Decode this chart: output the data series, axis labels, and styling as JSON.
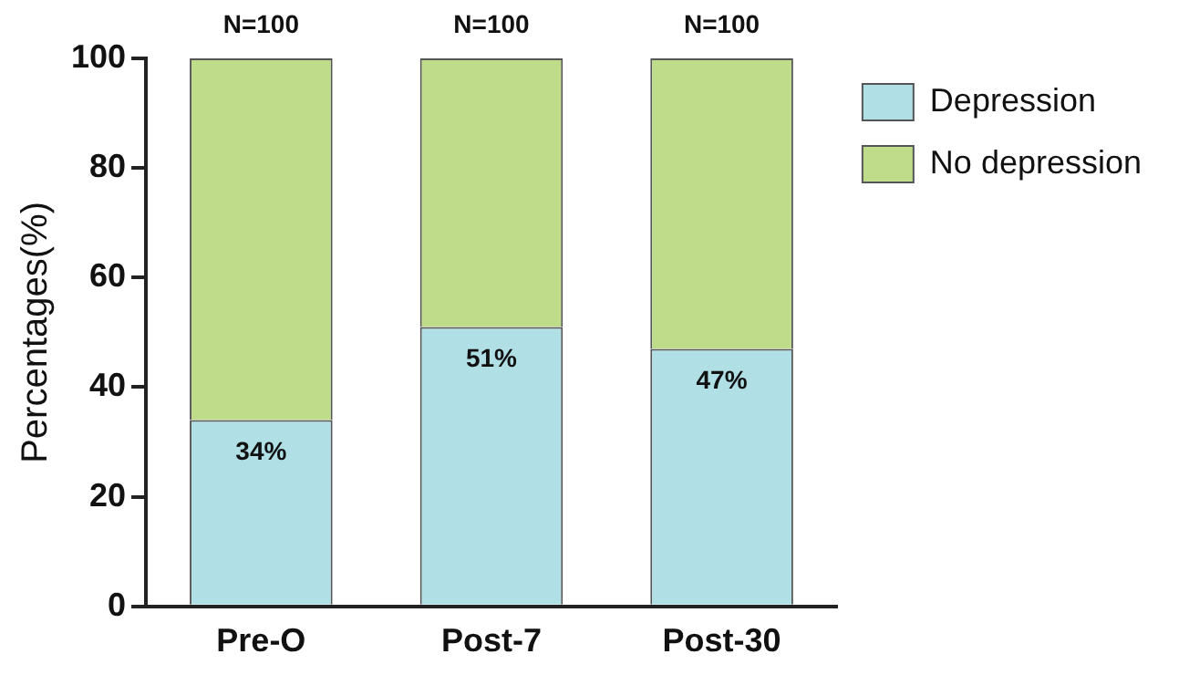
{
  "chart_data": {
    "type": "bar",
    "stacked": true,
    "ylabel": "Percentages(%)",
    "categories": [
      "Pre-O",
      "Post-7",
      "Post-30"
    ],
    "series": [
      {
        "name": "Depression",
        "color": "#b0dfe5",
        "values": [
          34,
          51,
          47
        ],
        "value_labels": [
          "34%",
          "51%",
          "47%"
        ]
      },
      {
        "name": "No depression",
        "color": "#bfdc8b",
        "values": [
          66,
          49,
          53
        ]
      }
    ],
    "ylim": [
      0,
      100
    ],
    "yticks": [
      0,
      20,
      40,
      60,
      80,
      100
    ],
    "grid": false,
    "legend": "top right",
    "annotations": [
      {
        "text": "N=100",
        "x": "Pre-O",
        "y": 100
      },
      {
        "text": "N=100",
        "x": "Post-7",
        "y": 100
      },
      {
        "text": "N=100",
        "x": "Post-30",
        "y": 100
      }
    ]
  }
}
